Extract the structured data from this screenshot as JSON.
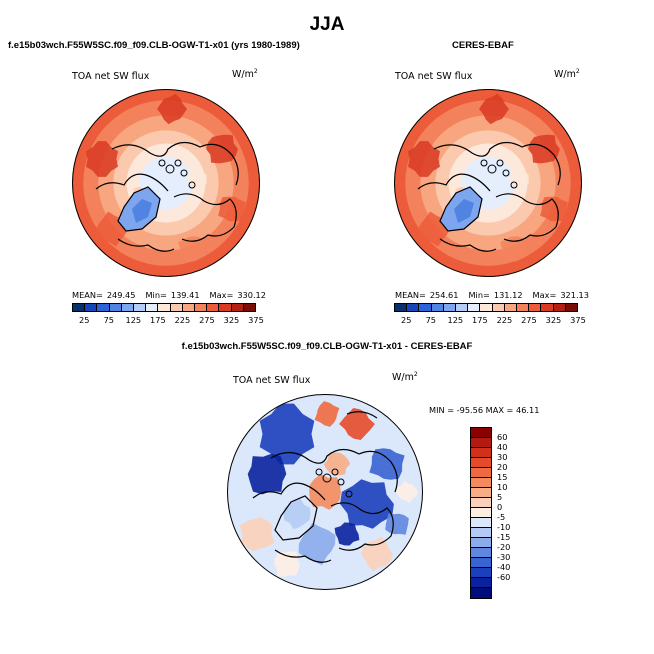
{
  "page_title": "JJA",
  "chart_data": [
    {
      "type": "heatmap",
      "title": "f.e15b03wch.F55W5SC.f09_f09.CLB-OGW-T1-x01 (yrs 1980-1989)",
      "variable": "TOA net SW flux",
      "units_base": "W/m",
      "units_exp": "2",
      "projection": "north polar stereographic",
      "mean_label": "MEAN=",
      "mean": "249.45",
      "min_label": "Min=",
      "min": "139.41",
      "max_label": "Max=",
      "max": "330.12",
      "colorbar_ticks": [
        "25",
        "75",
        "125",
        "175",
        "225",
        "275",
        "325",
        "375"
      ],
      "colorbar_colors": [
        "#08306b",
        "#1746b8",
        "#2d63d8",
        "#4f84e3",
        "#7ea6ee",
        "#b3cdf7",
        "#e4eefc",
        "#fde9dc",
        "#fbc9ad",
        "#f7a680",
        "#f3825c",
        "#ec5c3a",
        "#d93a22",
        "#b21f13",
        "#7a0d06"
      ]
    },
    {
      "type": "heatmap",
      "title": "CERES-EBAF",
      "variable": "TOA net SW flux",
      "units_base": "W/m",
      "units_exp": "2",
      "projection": "north polar stereographic",
      "mean_label": "MEAN=",
      "mean": "254.61",
      "min_label": "Min=",
      "min": "131.12",
      "max_label": "Max=",
      "max": "321.13",
      "colorbar_ticks": [
        "25",
        "75",
        "125",
        "175",
        "225",
        "275",
        "325",
        "375"
      ],
      "colorbar_colors": [
        "#08306b",
        "#1746b8",
        "#2d63d8",
        "#4f84e3",
        "#7ea6ee",
        "#b3cdf7",
        "#e4eefc",
        "#fde9dc",
        "#fbc9ad",
        "#f7a680",
        "#f3825c",
        "#ec5c3a",
        "#d93a22",
        "#b21f13",
        "#7a0d06"
      ]
    },
    {
      "type": "heatmap",
      "title": "f.e15b03wch.F55W5SC.f09_f09.CLB-OGW-T1-x01 - CERES-EBAF",
      "variable": "TOA net SW flux",
      "units_base": "W/m",
      "units_exp": "2",
      "projection": "north polar stereographic",
      "minmax_text": "MIN = -95.56 MAX =  46.11",
      "min": -95.56,
      "max": 46.11,
      "colorbar_ticks": [
        "60",
        "40",
        "30",
        "20",
        "15",
        "10",
        "5",
        "0",
        "-5",
        "-10",
        "-15",
        "-20",
        "-30",
        "-40",
        "-60"
      ],
      "colorbar_colors": [
        "#8b0000",
        "#b51a12",
        "#d3301c",
        "#e54b2a",
        "#ef6a40",
        "#f48b5e",
        "#f8ad86",
        "#fbd2b9",
        "#fdeee4",
        "#dbe7fa",
        "#b3cbf4",
        "#8baceb",
        "#5f87df",
        "#3863d2",
        "#1c3fbc",
        "#0a22a0",
        "#000c7a"
      ]
    }
  ]
}
